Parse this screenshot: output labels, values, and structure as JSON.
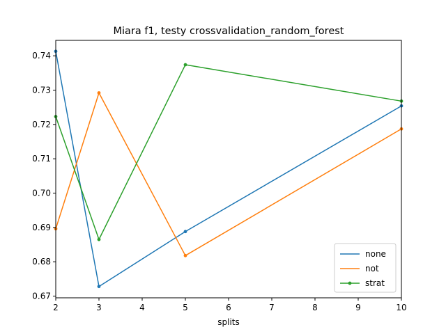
{
  "chart_data": {
    "type": "line",
    "title": "Miara f1, testy crossvalidation_random_forest",
    "xlabel": "splits",
    "ylabel": "",
    "x": [
      2,
      3,
      5,
      10
    ],
    "xlim": [
      2,
      10
    ],
    "ylim": [
      0.6695,
      0.7445
    ],
    "xticks": [
      2,
      3,
      4,
      5,
      6,
      7,
      8,
      9,
      10
    ],
    "yticks": [
      0.67,
      0.68,
      0.69,
      0.7,
      0.71,
      0.72,
      0.73,
      0.74
    ],
    "ytick_labels": [
      "0.67",
      "0.68",
      "0.69",
      "0.70",
      "0.71",
      "0.72",
      "0.73",
      "0.74"
    ],
    "grid": false,
    "legend_position": "lower-right",
    "series": [
      {
        "name": "none",
        "color": "#1f77b4",
        "values": [
          0.7413,
          0.6728,
          0.6888,
          0.7254
        ]
      },
      {
        "name": "not",
        "color": "#ff7f0e",
        "values": [
          0.6896,
          0.7292,
          0.6818,
          0.7187
        ]
      },
      {
        "name": "strat",
        "color": "#2ca02c",
        "values": [
          0.7223,
          0.6865,
          0.7374,
          0.7268
        ]
      }
    ]
  }
}
